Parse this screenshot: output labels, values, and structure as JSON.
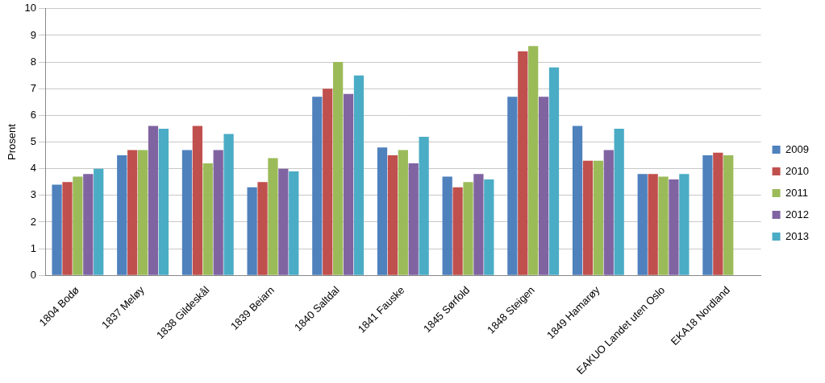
{
  "chart_data": {
    "type": "bar",
    "y_label": "Prosent",
    "categories": [
      "1804 Bodø",
      "1837 Meløy",
      "1838 Gildeskål",
      "1839 Beiarn",
      "1840 Saltdal",
      "1841 Fauske",
      "1845 Sørfold",
      "1848 Steigen",
      "1849 Hamarøy",
      "EAKUO Landet uten Oslo",
      "EKA18 Nordland"
    ],
    "series": [
      {
        "name": "2009",
        "color": "#4f81bd",
        "values": [
          3.4,
          4.5,
          4.7,
          3.3,
          6.7,
          4.8,
          3.7,
          6.7,
          5.6,
          3.8,
          4.5
        ]
      },
      {
        "name": "2010",
        "color": "#c0504d",
        "values": [
          3.5,
          4.7,
          5.6,
          3.5,
          7.0,
          4.5,
          3.3,
          8.4,
          4.3,
          3.8,
          4.6
        ]
      },
      {
        "name": "2011",
        "color": "#9bbb59",
        "values": [
          3.7,
          4.7,
          4.2,
          4.4,
          8.0,
          4.7,
          3.5,
          8.6,
          4.3,
          3.7,
          4.5
        ]
      },
      {
        "name": "2012",
        "color": "#8064a2",
        "values": [
          3.8,
          5.6,
          4.7,
          4.0,
          6.8,
          4.2,
          3.8,
          6.7,
          4.7,
          3.6,
          null
        ]
      },
      {
        "name": "2013",
        "color": "#4bacc6",
        "values": [
          4.0,
          5.5,
          5.3,
          3.9,
          7.5,
          5.2,
          3.6,
          7.8,
          5.5,
          3.8,
          null
        ]
      }
    ],
    "ylim": [
      0,
      10
    ],
    "yticks": [
      0,
      1,
      2,
      3,
      4,
      5,
      6,
      7,
      8,
      9,
      10
    ],
    "grid": true,
    "legend": "right"
  }
}
